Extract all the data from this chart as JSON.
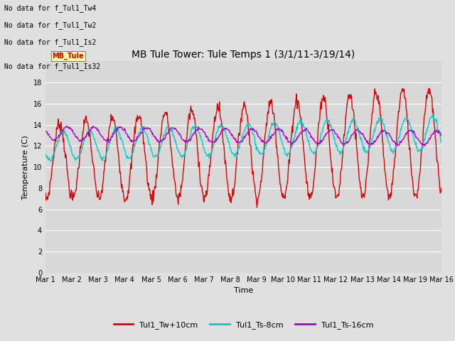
{
  "title": "MB Tule Tower: Tule Temps 1 (3/1/11-3/19/14)",
  "xlabel": "Time",
  "ylabel": "Temperature (C)",
  "ylim": [
    0,
    20
  ],
  "xlim": [
    0,
    15
  ],
  "yticks": [
    0,
    2,
    4,
    6,
    8,
    10,
    12,
    14,
    16,
    18
  ],
  "xtick_labels": [
    "Mar 1",
    "Mar 2",
    "Mar 3",
    "Mar 4",
    "Mar 5",
    "Mar 6",
    "Mar 7",
    "Mar 8",
    "Mar 9",
    "Mar 10",
    "Mar 11",
    "Mar 12",
    "Mar 13",
    "Mar 14",
    "Mar 19",
    "Mar 16"
  ],
  "fig_bg": "#e0e0e0",
  "ax_bg": "#d8d8d8",
  "grid_color": "#ffffff",
  "tw_color": "#dd0000",
  "ts8_color": "#00cccc",
  "ts16_color": "#aa00cc",
  "line_lw": 1.0,
  "title_fontsize": 10,
  "tick_fontsize": 7,
  "legend_labels": [
    "Tul1_Tw+10cm",
    "Tul1_Ts-8cm",
    "Tul1_Ts-16cm"
  ],
  "no_data_lines": [
    "No data for f_Tul1_Tw4",
    "No data for f_Tul1_Tw2",
    "No data for f_Tul1_Is2",
    "No data for f_Tul1_Is32"
  ],
  "tooltip_text": "MB_Tule"
}
